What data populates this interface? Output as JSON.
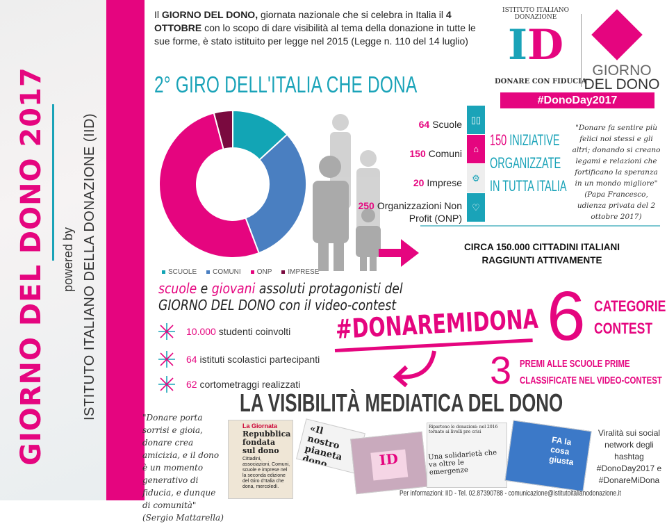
{
  "sidebar": {
    "title": "GIORNO DEL DONO 2017",
    "powered": "powered by",
    "org": "ISTITUTO ITALIANO DELLA DONAZIONE (IID)"
  },
  "intro": {
    "p1": "Il ",
    "b1": "GIORNO DEL DONO,",
    "p2": " giornata nazionale che si celebra in Italia il ",
    "b2": "4 OTTOBRE",
    "p3": " con lo scopo di dare visibilità al tema della donazione in tutte le sue forme, è stato istituito per legge nel 2015 (Legge n. 110 del 14 luglio)"
  },
  "title": "2° GIRO DELL'ITALIA CHE DONA",
  "logo": {
    "ring": "ISTITUTO ITALIANO DONAZIONE",
    "letters": [
      "I",
      "D"
    ],
    "tagline": "DONARE CON FIDUCIA",
    "gdd1": "GIORNO",
    "gdd2": "DEL DONO",
    "hashtag": "#DonoDay2017"
  },
  "chart_data": {
    "type": "pie",
    "variant": "donut",
    "categories": [
      "SCUOLE",
      "COMUNI",
      "ONP",
      "IMPRESE"
    ],
    "values": [
      64,
      150,
      250,
      20
    ],
    "colors": [
      "#12a5b5",
      "#4a7fc1",
      "#e5057f",
      "#7a0a3f"
    ],
    "legend": "bottom"
  },
  "counts": [
    {
      "num": "64",
      "label": "Scuole",
      "icon": "book-icon",
      "color": "#1aa3b8"
    },
    {
      "num": "150",
      "label": "Comuni",
      "icon": "building-icon",
      "color": "#e5057f"
    },
    {
      "num": "20",
      "label": "Imprese",
      "icon": "gears-icon",
      "color": "#eeeeee"
    },
    {
      "num": "250",
      "label": "Organizzazioni Non Profit (ONP)",
      "icon": "heart-icon",
      "color": "#1aa3b8"
    }
  ],
  "initiatives": {
    "num": "150",
    "l1": " INIZIATIVE",
    "l2": "ORGANIZZATE",
    "l3": "IN TUTTA ITALIA"
  },
  "papa_quote": "\"Donare fa sentire più felici noi stessi e gli altri; donando si creano legami e relazioni che fortificano la speranza in un mondo migliore\" (Papa Francesco, udienza privata del 2 ottobre 2017)",
  "circa": {
    "l1": "CIRCA 150.000 CITTADINI ITALIANI",
    "l2": "RAGGIUNTI ATTIVAMENTE"
  },
  "youth": {
    "w1": "scuole",
    "w2": " e ",
    "w3": "giovani",
    "w4": " assoluti protagonisti del",
    "l2a": "GIORNO DEL DONO",
    "l2b": " con il video-contest"
  },
  "bullets": [
    {
      "num": "10.000",
      "text": " studenti coinvolti"
    },
    {
      "num": "64",
      "text": " istituti scolastici partecipanti"
    },
    {
      "num": "62",
      "text": " cortometraggi realizzati"
    }
  ],
  "hashtag": "#DONAREMIDONA",
  "categories": {
    "num": "6",
    "l1": "CATEGORIE",
    "l2": "CONTEST"
  },
  "prizes": {
    "num": "3",
    "l1": "PREMI ALLE SCUOLE PRIME",
    "l2": "CLASSIFICATE NEL VIDEO-CONTEST"
  },
  "media_title": "LA VISIBILITÀ MEDIATICA DEL DONO",
  "mattarella_quote": "\"Donare porta sorrisi e gioia, donare crea amicizia, e il dono è un momento generativo di fiducia, e dunque di comunità\" (Sergio Mattarella)",
  "clippings": {
    "c1a": "La Giornata",
    "c1b": "Repubblica fondata sul dono",
    "c1c": "Cittadini, associazioni, Comuni, scuole e imprese nel la seconda edizione del Giro d'Italia che dona, mercoledì.",
    "c2": "«Il nostro pianeta dono ricevuto da con»",
    "c3a": "Ripartono le donazioni: nel 2016 tornate ai livelli pre crisi",
    "c3b": "Una solidarietà che va oltre le emergenze",
    "c4": "FA la cosa giusta"
  },
  "viral": "Viralità sui social network degli hashtag #DonoDay2017 e #DonareMiDona",
  "footer": "Per informazioni: IID - Tel. 02.87390788 - comunicazione@istitutoitalianodonazione.it"
}
